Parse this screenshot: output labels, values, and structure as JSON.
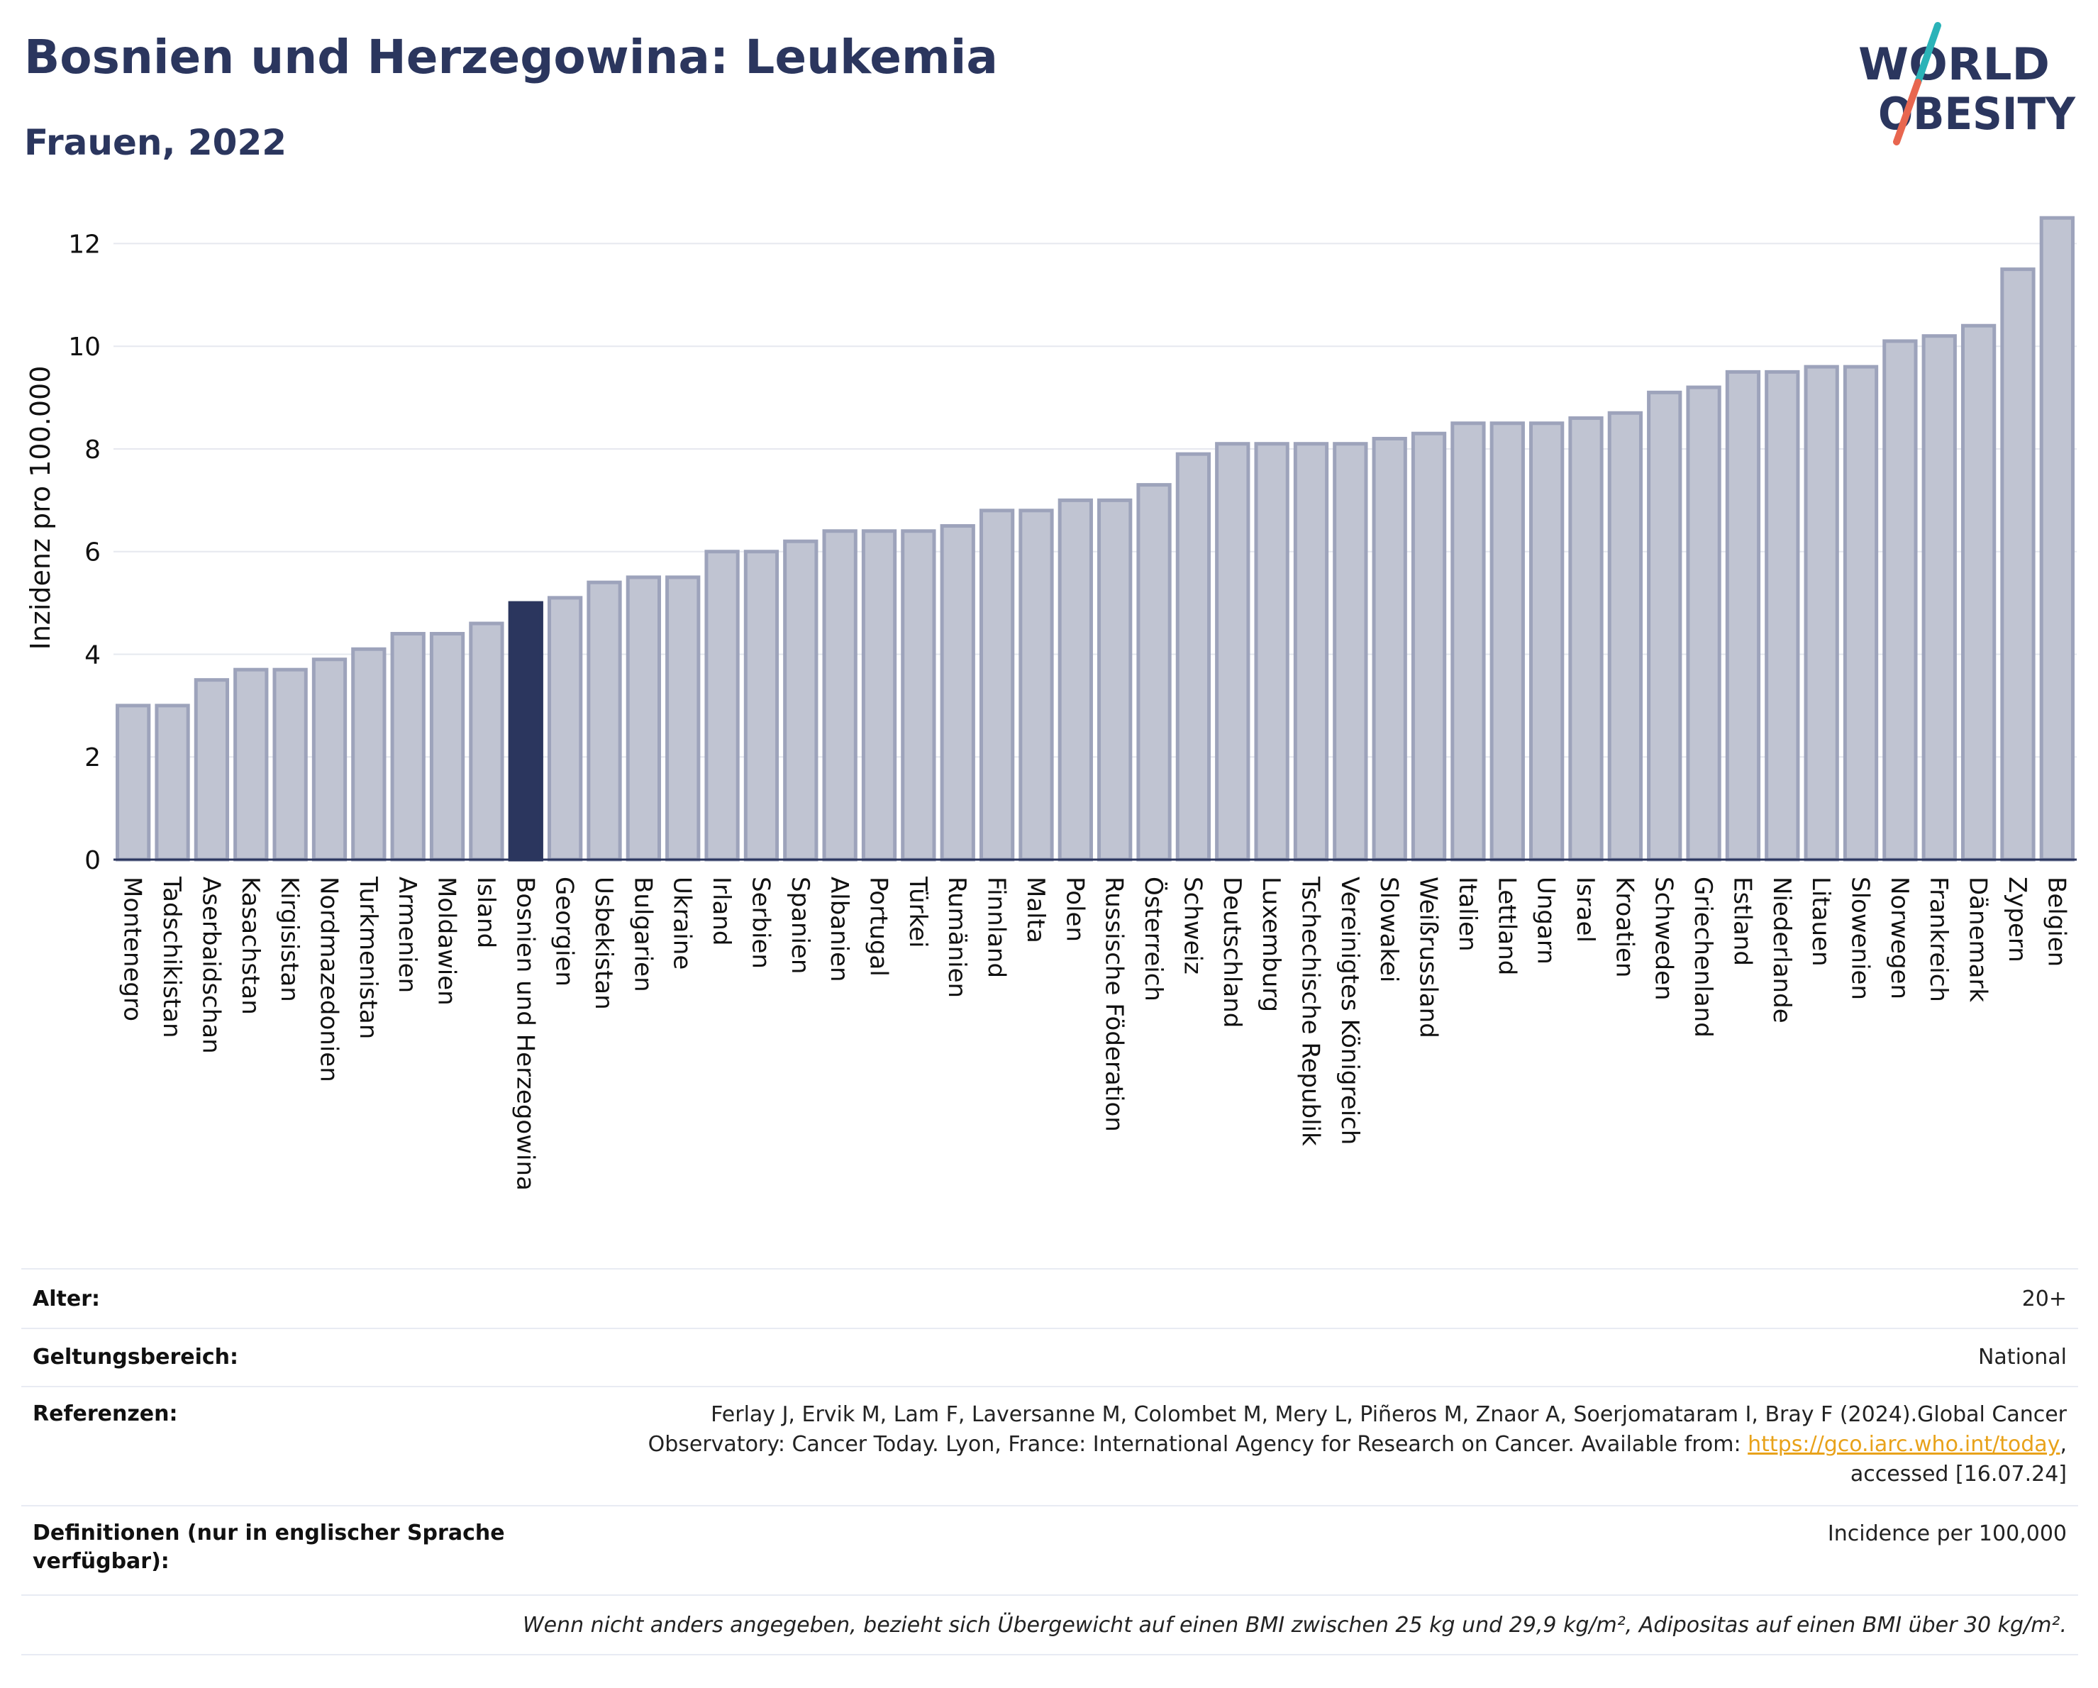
{
  "header": {
    "title": "Bosnien und Herzegowina: Leukemia",
    "subtitle": "Frauen, 2022"
  },
  "logo": {
    "line1": "WORLD",
    "line2": "OBESITY",
    "colors": {
      "text": "#2b365e",
      "slash_top": "#2bb3b8",
      "slash_bottom": "#e8664f"
    }
  },
  "chart_data": {
    "type": "bar",
    "ylabel": "Inzidenz pro 100.000",
    "ylim": [
      0,
      12.6
    ],
    "yticks": [
      0,
      2,
      4,
      6,
      8,
      10,
      12
    ],
    "grid": true,
    "highlight": "Bosnien und Herzegowina",
    "colors": {
      "bar": "#c0c4d2",
      "bar_border": "#9da3bb",
      "highlight": "#2b365e"
    },
    "categories": [
      "Montenegro",
      "Tadschikistan",
      "Aserbaidschan",
      "Kasachstan",
      "Kirgisistan",
      "Nordmazedonien",
      "Turkmenistan",
      "Armenien",
      "Moldawien",
      "Island",
      "Bosnien und Herzegowina",
      "Georgien",
      "Usbekistan",
      "Bulgarien",
      "Ukraine",
      "Irland",
      "Serbien",
      "Spanien",
      "Albanien",
      "Portugal",
      "Türkei",
      "Rumänien",
      "Finnland",
      "Malta",
      "Polen",
      "Russische Föderation",
      "Österreich",
      "Schweiz",
      "Deutschland",
      "Luxemburg",
      "Tschechische Republik",
      "Vereinigtes Königreich",
      "Slowakei",
      "Weißrussland",
      "Italien",
      "Lettland",
      "Ungarn",
      "Israel",
      "Kroatien",
      "Schweden",
      "Griechenland",
      "Estland",
      "Niederlande",
      "Litauen",
      "Slowenien",
      "Norwegen",
      "Frankreich",
      "Dänemark",
      "Zypern",
      "Belgien"
    ],
    "values": [
      3.0,
      3.0,
      3.5,
      3.7,
      3.7,
      3.9,
      4.1,
      4.4,
      4.4,
      4.6,
      5.0,
      5.1,
      5.4,
      5.5,
      5.5,
      6.0,
      6.0,
      6.2,
      6.4,
      6.4,
      6.4,
      6.5,
      6.8,
      6.8,
      7.0,
      7.0,
      7.3,
      7.9,
      8.1,
      8.1,
      8.1,
      8.1,
      8.2,
      8.3,
      8.5,
      8.5,
      8.5,
      8.6,
      8.7,
      9.1,
      9.2,
      9.5,
      9.5,
      9.6,
      9.6,
      10.1,
      10.2,
      10.4,
      11.5,
      12.5
    ]
  },
  "meta": {
    "age_label": "Alter:",
    "age_value": "20+",
    "scope_label": "Geltungsbereich:",
    "scope_value": "National",
    "ref_label": "Referenzen:",
    "ref_line1": "Ferlay J, Ervik M, Lam F, Laversanne M, Colombet M, Mery L, Piñeros M, Znaor A, Soerjomataram I, Bray F (2024).Global Cancer",
    "ref_line2": "Observatory: Cancer Today. Lyon, France: International Agency for Research on Cancer. Available from: ",
    "ref_link": "https://gco.iarc.who.int/today",
    "ref_line2_end": ",",
    "ref_line3": "accessed [16.07.24]",
    "def_label_line1": "Definitionen (nur in englischer Sprache",
    "def_label_line2": "verfügbar):",
    "def_value": "Incidence per 100,000",
    "note": "Wenn nicht anders angegeben, bezieht sich Übergewicht auf einen BMI zwischen 25 kg und 29,9 kg/m², Adipositas auf einen BMI über 30 kg/m²."
  }
}
